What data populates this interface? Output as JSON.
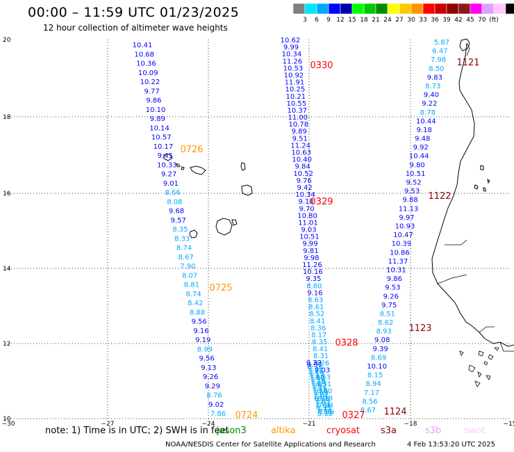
{
  "title": "00:00 – 11:59 UTC 01/23/2025",
  "subtitle": "12 hour collection of altimeter wave heights",
  "colorbar": {
    "colors": [
      "#7f7f7f",
      "#00e5ff",
      "#00a8ff",
      "#0000ff",
      "#0000a8",
      "#00ff00",
      "#00c800",
      "#008c00",
      "#ffff00",
      "#ffc800",
      "#ff9600",
      "#ff0000",
      "#c80000",
      "#8c0000",
      "#8b1a1a",
      "#ff00ff",
      "#e0a0ff",
      "#ffc8ff",
      "#000000"
    ],
    "labels": [
      "3",
      "6",
      "9",
      "12",
      "15",
      "18",
      "21",
      "24",
      "27",
      "30",
      "33",
      "36",
      "39",
      "42",
      "45",
      "70",
      "(ft)"
    ]
  },
  "axes": {
    "x_ticks": [
      "−30",
      "−27",
      "−24",
      "−21",
      "−18",
      "−15"
    ],
    "y_ticks": [
      "20",
      "18",
      "16",
      "14",
      "12",
      "10"
    ]
  },
  "pass_labels": [
    {
      "text": "0330",
      "color": "#ff0000"
    },
    {
      "text": "1121",
      "color": "#8c0000"
    },
    {
      "text": "0726",
      "color": "#ff9600"
    },
    {
      "text": "0329",
      "color": "#ff0000"
    },
    {
      "text": "1122",
      "color": "#8c0000"
    },
    {
      "text": "0725",
      "color": "#ff9600"
    },
    {
      "text": "1123",
      "color": "#8c0000"
    },
    {
      "text": "0328",
      "color": "#ff0000"
    },
    {
      "text": "0724",
      "color": "#ff9600"
    },
    {
      "text": "0327",
      "color": "#ff0000"
    },
    {
      "text": "1124",
      "color": "#8c0000"
    }
  ],
  "track_values": {
    "A": [
      "10.41",
      "10.68",
      "10.36",
      "10.09",
      "10.22",
      "9.77",
      "9.86",
      "10.10",
      "9.89",
      "10.14",
      "10.57",
      "10.17",
      "9.45",
      "10.33",
      "9.27",
      "9.01",
      "8.66",
      "8.08",
      "9.68",
      "9.57",
      "8.35",
      "8.33",
      "8.74",
      "8.67",
      "7.90",
      "8.07",
      "8.81",
      "8.74",
      "8.42",
      "8.88",
      "9.56",
      "9.16",
      "9.19",
      "8.99",
      "9.56",
      "9.13",
      "9.26",
      "9.29",
      "8.76",
      "9.02",
      "7.86"
    ],
    "B": [
      "10.62",
      "9.99",
      "10.34",
      "11.26",
      "10.53",
      "10.92",
      "11.91",
      "10.25",
      "10.21",
      "10.55",
      "10.37",
      "11.00",
      "10.78",
      "9.89",
      "9.51",
      "11.24",
      "10.63",
      "10.40",
      "9.84",
      "10.52",
      "9.76",
      "9.42",
      "10.34",
      "9.18",
      "9.70",
      "10.80",
      "11.01",
      "9.03",
      "10.51",
      "9.99",
      "9.81",
      "9.98",
      "11.26",
      "10.16",
      "9.35",
      "8.80",
      "9.16",
      "8.63",
      "8.61",
      "8.52",
      "8.41",
      "8.36",
      "8.17",
      "8.35",
      "8.41",
      "8.31",
      "8.26",
      "9.03",
      "8.53",
      "8.31",
      "8.20",
      "8.18",
      "7.94",
      "7.99"
    ],
    "C": [
      "9.22",
      "9.37",
      "8.33",
      "7.35",
      "7.24",
      "7.19",
      "7.12",
      "7.08",
      "7.14",
      "7.10",
      "7.05",
      "7.02",
      "7.11",
      "7.10",
      "7.09",
      "7.02",
      "7.01",
      "6.98",
      "7.05",
      "7.03",
      "7.01",
      "6.95",
      "7.12",
      "7.81",
      "8.12"
    ],
    "D": [
      "5.87",
      "6.47",
      "7.98",
      "8.50",
      "9.83",
      "8.73",
      "9.40",
      "9.22",
      "8.78",
      "10.44",
      "9.18",
      "9.48",
      "9.92",
      "10.44",
      "9.80",
      "10.51",
      "9.52",
      "9.53",
      "9.88",
      "11.13",
      "9.97",
      "10.93",
      "10.47",
      "10.39",
      "10.86",
      "11.37",
      "10.31",
      "9.86",
      "9.53",
      "9.26",
      "9.75",
      "8.51",
      "8.62",
      "8.93",
      "9.08",
      "9.39",
      "8.69",
      "10.10",
      "8.15",
      "8.94",
      "7.17",
      "8.56",
      "8.67"
    ]
  },
  "note": "note:  1) Time is in UTC; 2) SWH is in feet",
  "satellites": [
    {
      "name": "jason3",
      "color": "#008c00"
    },
    {
      "name": "altika",
      "color": "#ff9600"
    },
    {
      "name": "cryosat",
      "color": "#ff0000"
    },
    {
      "name": "s3a",
      "color": "#8c0000"
    },
    {
      "name": "s3b",
      "color": "#e0a0ff"
    },
    {
      "name": "swot",
      "color": "#ffc8ff"
    }
  ],
  "credit": "NOAA/NESDIS Center for Satellite Applications and Research",
  "timestamp": "4 Feb 13:53:20 UTC 2025"
}
